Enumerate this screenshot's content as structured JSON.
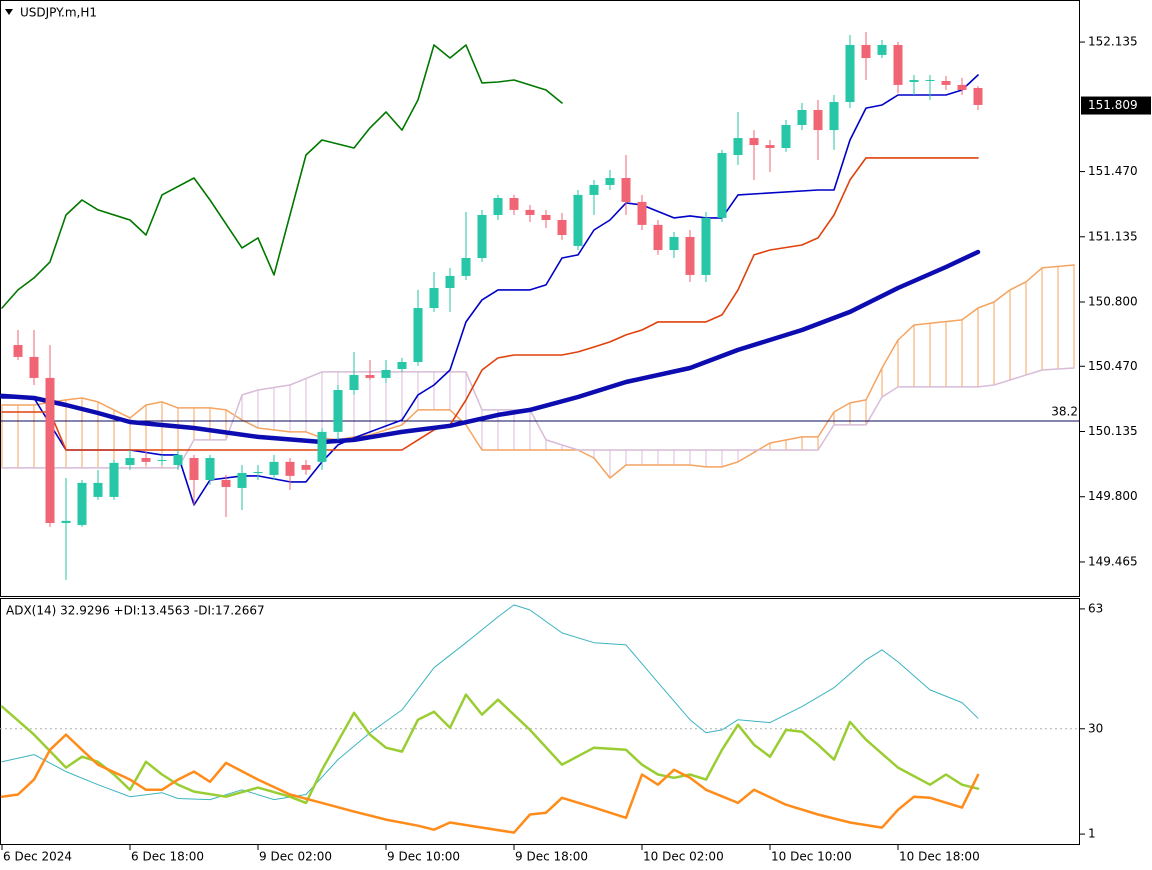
{
  "header": {
    "symbol": "USDJPY.m,H1"
  },
  "chart_data": [
    {
      "type": "candlestick",
      "up_color": "#26c6a6",
      "down_color": "#f06474",
      "xlim": [
        -0.125,
        67.375
      ],
      "ylim": [
        149.285,
        152.351
      ],
      "yticks": [
        152.135,
        {
          "value": 151.47,
          "label": "151.470"
        },
        151.135,
        {
          "value": 150.8,
          "label": "150.800"
        },
        {
          "value": 150.47,
          "label": "150.470"
        },
        150.135,
        {
          "value": 149.8,
          "label": "149.800"
        },
        149.465
      ],
      "last_price": 151.809,
      "level": {
        "value": 150.189,
        "label": "38.2",
        "color": "#0a0a5a"
      },
      "x": [
        1,
        2,
        3,
        4,
        5,
        6,
        7,
        8,
        9,
        10,
        11,
        12,
        13,
        14,
        15,
        16,
        17,
        18,
        19,
        20,
        21,
        22,
        23,
        24,
        25,
        26,
        27,
        28,
        29,
        30,
        31,
        32,
        33,
        34,
        35,
        36,
        37,
        38,
        39,
        40,
        41,
        42,
        43,
        44,
        45,
        46,
        47,
        48,
        49,
        50,
        51,
        52,
        53,
        54,
        55,
        56,
        57,
        58,
        59,
        60,
        61
      ],
      "open": [
        150.579,
        150.518,
        150.41,
        149.665,
        149.655,
        149.799,
        149.799,
        149.963,
        149.999,
        149.989,
        149.963,
        149.999,
        149.886,
        149.886,
        149.845,
        149.927,
        149.912,
        149.979,
        149.963,
        149.979,
        150.133,
        150.348,
        150.425,
        150.41,
        150.456,
        150.492,
        150.769,
        150.872,
        150.934,
        151.026,
        151.247,
        151.334,
        151.273,
        151.247,
        151.221,
        151.088,
        151.35,
        151.401,
        151.437,
        151.314,
        151.196,
        151.067,
        151.134,
        150.939,
        151.232,
        151.555,
        151.642,
        151.606,
        151.591,
        151.709,
        151.786,
        151.683,
        151.827,
        152.12,
        152.069,
        152.12,
        151.93,
        151.94,
        151.935,
        151.915,
        151.899
      ],
      "high": [
        150.656,
        150.656,
        150.579,
        149.896,
        149.886,
        149.938,
        149.989,
        150.04,
        150.04,
        150.015,
        150.04,
        150.015,
        150.015,
        149.912,
        149.963,
        149.963,
        150.015,
        149.999,
        149.989,
        150.153,
        150.374,
        150.544,
        150.502,
        150.502,
        150.513,
        150.862,
        150.954,
        150.975,
        151.262,
        151.273,
        151.35,
        151.35,
        151.298,
        151.273,
        151.257,
        151.375,
        151.427,
        151.478,
        151.555,
        151.35,
        151.221,
        151.16,
        151.17,
        151.262,
        151.581,
        151.776,
        151.683,
        151.632,
        151.735,
        151.822,
        151.838,
        151.863,
        152.171,
        152.187,
        152.146,
        152.135,
        151.966,
        151.966,
        151.961,
        151.951,
        151.909
      ],
      "low": [
        150.502,
        150.374,
        149.645,
        149.373,
        149.645,
        149.784,
        149.784,
        149.938,
        149.963,
        149.963,
        149.938,
        149.758,
        149.861,
        149.696,
        149.732,
        149.886,
        149.886,
        149.835,
        149.912,
        149.938,
        150.092,
        150.323,
        150.4,
        150.384,
        150.441,
        150.472,
        150.749,
        150.749,
        150.913,
        151.006,
        151.221,
        151.247,
        151.211,
        151.18,
        151.119,
        151.067,
        151.247,
        151.375,
        151.247,
        151.17,
        151.042,
        151.026,
        150.903,
        150.903,
        151.211,
        151.504,
        151.427,
        151.468,
        151.571,
        151.683,
        151.529,
        151.581,
        151.796,
        151.94,
        152.053,
        151.873,
        151.863,
        151.838,
        151.889,
        151.863,
        151.786
      ],
      "close": [
        150.518,
        150.41,
        149.665,
        149.676,
        149.871,
        149.871,
        149.974,
        149.999,
        149.979,
        149.989,
        150.015,
        149.886,
        149.999,
        149.85,
        149.922,
        149.927,
        149.979,
        149.907,
        149.938,
        150.133,
        150.348,
        150.425,
        150.41,
        150.451,
        150.492,
        150.769,
        150.872,
        150.934,
        151.026,
        151.247,
        151.334,
        151.273,
        151.247,
        151.221,
        151.144,
        151.35,
        151.401,
        151.437,
        151.314,
        151.196,
        151.067,
        151.134,
        150.939,
        151.232,
        151.565,
        151.642,
        151.606,
        151.591,
        151.709,
        151.786,
        151.683,
        151.827,
        152.12,
        152.053,
        152.12,
        151.915,
        151.94,
        151.94,
        151.915,
        151.889,
        151.812
      ],
      "cloud": {
        "span_a": {
          "color": "#f4a460",
          "x": [
            0,
            2,
            4,
            5,
            6,
            7,
            8,
            9,
            10,
            11,
            13,
            14,
            15,
            16,
            18,
            19,
            20,
            21,
            22,
            23,
            24,
            25,
            26,
            28,
            29,
            30,
            36,
            37,
            38,
            39,
            43,
            44,
            45,
            46,
            48,
            50,
            51,
            52,
            53,
            54,
            55,
            56,
            57,
            60,
            61,
            62,
            63,
            64,
            65,
            67
          ],
          "values": [
            150.271,
            150.271,
            150.297,
            150.307,
            150.287,
            150.246,
            150.205,
            150.271,
            150.287,
            150.256,
            150.256,
            150.246,
            150.194,
            150.153,
            150.133,
            150.133,
            150.102,
            150.092,
            150.107,
            150.117,
            150.143,
            150.169,
            150.246,
            150.246,
            150.169,
            150.04,
            150.04,
            149.999,
            149.896,
            149.963,
            149.963,
            149.953,
            149.953,
            149.979,
            150.076,
            150.107,
            150.107,
            150.235,
            150.282,
            150.297,
            150.461,
            150.605,
            150.682,
            150.708,
            150.769,
            150.8,
            150.862,
            150.903,
            150.975,
            150.99
          ]
        },
        "span_b": {
          "color": "#d8bcd8",
          "x": [
            0,
            11,
            12,
            14,
            15,
            16,
            18,
            20,
            29,
            30,
            33,
            34,
            36,
            51,
            52,
            54,
            55,
            56,
            61,
            62,
            65,
            67
          ],
          "values": [
            149.948,
            149.948,
            150.092,
            150.092,
            150.323,
            150.348,
            150.374,
            150.441,
            150.441,
            150.246,
            150.246,
            150.092,
            150.04,
            150.04,
            150.169,
            150.169,
            150.312,
            150.364,
            150.364,
            150.374,
            150.451,
            150.461
          ]
        }
      },
      "series": [
        {
          "color": "#007800",
          "width": 1.6,
          "x": [
            0,
            1,
            2,
            3,
            4,
            5,
            6,
            8,
            9,
            10,
            12,
            13,
            15,
            16,
            17,
            19,
            20,
            22,
            23,
            24,
            25,
            26,
            27,
            28,
            29,
            30,
            31,
            32,
            34,
            35
          ],
          "values": [
            150.769,
            150.862,
            150.924,
            151.006,
            151.247,
            151.324,
            151.273,
            151.221,
            151.144,
            151.35,
            151.437,
            151.324,
            151.078,
            151.129,
            150.939,
            151.555,
            151.632,
            151.591,
            151.694,
            151.776,
            151.683,
            151.838,
            152.12,
            152.053,
            152.12,
            151.925,
            151.93,
            151.94,
            151.889,
            151.822
          ]
        },
        {
          "color": "#0000c8",
          "width": 1.6,
          "x": [
            0,
            2,
            4,
            8,
            10,
            11,
            12,
            13,
            15,
            16,
            18,
            19,
            20,
            21,
            22,
            25,
            26,
            27,
            28,
            29,
            30,
            31,
            33,
            34,
            35,
            36,
            37,
            38,
            39,
            40,
            42,
            43,
            44,
            45,
            46,
            51,
            52,
            53,
            54,
            55,
            56,
            59,
            60,
            61
          ],
          "values": [
            150.307,
            150.307,
            150.04,
            150.04,
            150.015,
            150.015,
            149.758,
            149.886,
            149.907,
            149.907,
            149.876,
            149.876,
            149.979,
            150.066,
            150.102,
            150.194,
            150.323,
            150.374,
            150.451,
            150.698,
            150.811,
            150.862,
            150.862,
            150.888,
            151.026,
            151.042,
            151.17,
            151.221,
            151.309,
            151.298,
            151.232,
            151.242,
            151.232,
            151.232,
            151.35,
            151.375,
            151.375,
            151.632,
            151.796,
            151.812,
            151.863,
            151.863,
            151.889,
            151.966
          ]
        },
        {
          "color": "#e0420c",
          "width": 1.6,
          "x": [
            0,
            3,
            4,
            25,
            26,
            27,
            28,
            29,
            30,
            31,
            32,
            35,
            36,
            37,
            38,
            39,
            40,
            41,
            44,
            45,
            46,
            47,
            48,
            50,
            51,
            52,
            53,
            54,
            61
          ],
          "values": [
            150.235,
            150.235,
            150.04,
            150.04,
            150.092,
            150.143,
            150.169,
            150.297,
            150.451,
            150.513,
            150.528,
            150.528,
            150.544,
            150.569,
            150.595,
            150.631,
            150.656,
            150.698,
            150.698,
            150.734,
            150.862,
            151.042,
            151.067,
            151.093,
            151.129,
            151.247,
            151.427,
            151.54,
            151.54
          ]
        },
        {
          "color": "#0c0cb0",
          "width": 4.5,
          "x": [
            0,
            2,
            4,
            6,
            8,
            12,
            16,
            20,
            22,
            25,
            28,
            31,
            33,
            36,
            39,
            43,
            46,
            50,
            53,
            56,
            59,
            61
          ],
          "values": [
            150.318,
            150.307,
            150.271,
            150.23,
            150.184,
            150.153,
            150.107,
            150.081,
            150.092,
            150.133,
            150.164,
            150.22,
            150.246,
            150.312,
            150.389,
            150.461,
            150.554,
            150.656,
            150.749,
            150.872,
            150.98,
            151.057
          ]
        }
      ]
    },
    {
      "type": "line",
      "title": "ADX(14) 32.9296 +DI:13.4563 -DI:17.2667",
      "xlim": [
        -0.125,
        67.375
      ],
      "ylim": [
        -2,
        66
      ],
      "yticks": [
        63,
        30,
        1
      ],
      "levels": [
        30
      ],
      "xticks": [
        {
          "value": 0,
          "label": "6 Dec 2024"
        },
        {
          "value": 8,
          "label": "6 Dec 18:00"
        },
        {
          "value": 16,
          "label": "9 Dec 02:00"
        },
        {
          "value": 24,
          "label": "9 Dec 10:00"
        },
        {
          "value": 32,
          "label": "9 Dec 18:00"
        },
        {
          "value": 40,
          "label": "10 Dec 02:00"
        },
        {
          "value": 48,
          "label": "10 Dec 10:00"
        },
        {
          "value": 56,
          "label": "10 Dec 18:00"
        }
      ],
      "series": [
        {
          "color": "#3cb4c0",
          "width": 1,
          "x": [
            0,
            2,
            4,
            6,
            8,
            10,
            11,
            13,
            15,
            17,
            19,
            21,
            23,
            25,
            27,
            29,
            31,
            32,
            33,
            35,
            37,
            39,
            41,
            43,
            44,
            45,
            46,
            48,
            50,
            52,
            54,
            55,
            56,
            58,
            60,
            61
          ],
          "values": [
            20.9,
            22.9,
            18.2,
            14.6,
            11.3,
            12.4,
            10.8,
            10.5,
            13.2,
            10.5,
            11.9,
            21.5,
            28.9,
            35.2,
            46.8,
            53.7,
            60.8,
            64.1,
            62.7,
            56.4,
            53.7,
            53.1,
            42.7,
            32.5,
            28.9,
            29.7,
            32.5,
            31.7,
            36.1,
            41.3,
            49.0,
            51.7,
            48.4,
            40.7,
            37.2,
            32.9
          ]
        },
        {
          "color": "#9acd32",
          "width": 2.5,
          "x": [
            0,
            2,
            4,
            5,
            6,
            7,
            8,
            9,
            10,
            11,
            12,
            14,
            16,
            18,
            19,
            20,
            22,
            23,
            24,
            25,
            26,
            27,
            28,
            29,
            30,
            31,
            33,
            35,
            37,
            39,
            40,
            41,
            42,
            43,
            44,
            45,
            46,
            47,
            48,
            49,
            50,
            51,
            52,
            53,
            54,
            56,
            58,
            59,
            60,
            61
          ],
          "values": [
            36.1,
            28.4,
            19.3,
            22.3,
            20.9,
            17.4,
            13.2,
            20.9,
            17.4,
            14.6,
            12.7,
            11.3,
            13.8,
            11.3,
            9.6,
            18.7,
            34.4,
            28.4,
            24.8,
            23.7,
            32.5,
            34.7,
            30.3,
            39.4,
            33.9,
            38.0,
            29.7,
            20.1,
            24.8,
            24.2,
            20.1,
            17.4,
            16.5,
            17.4,
            16.0,
            24.2,
            31.1,
            25.6,
            22.3,
            29.7,
            29.2,
            25.6,
            21.5,
            31.9,
            27.0,
            19.3,
            14.6,
            17.4,
            14.6,
            13.5
          ]
        },
        {
          "color": "#ff8c1a",
          "width": 2.5,
          "x": [
            0,
            1,
            2,
            3,
            4,
            5,
            6,
            8,
            9,
            10,
            11,
            12,
            13,
            14,
            16,
            18,
            20,
            22,
            24,
            26,
            27,
            28,
            30,
            32,
            33,
            34,
            35,
            37,
            39,
            40,
            41,
            42,
            43,
            44,
            46,
            47,
            49,
            51,
            53,
            55,
            56,
            57,
            58,
            60,
            61
          ],
          "values": [
            11.3,
            11.9,
            16.0,
            24.2,
            28.4,
            24.2,
            20.1,
            16.0,
            13.2,
            13.2,
            16.0,
            18.2,
            15.4,
            20.6,
            16.0,
            11.9,
            9.6,
            7.2,
            5.0,
            3.3,
            2.2,
            4.2,
            2.8,
            1.4,
            6.4,
            6.9,
            11.0,
            8.3,
            5.5,
            17.4,
            14.6,
            18.7,
            16.5,
            13.2,
            9.6,
            13.2,
            9.1,
            6.4,
            4.2,
            2.8,
            7.7,
            11.3,
            11.0,
            8.3,
            17.3
          ]
        }
      ]
    }
  ]
}
